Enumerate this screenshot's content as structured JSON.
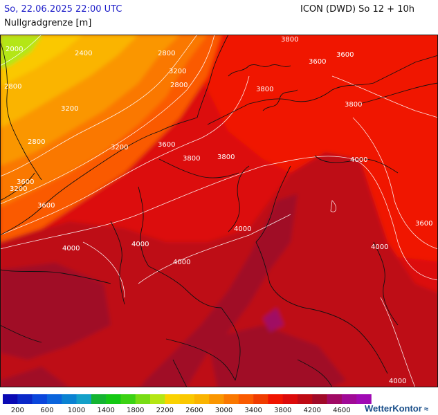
{
  "header": {
    "datetime": "So, 22.06.2025 22:00 UTC",
    "model_run": "ICON (DWD) So 12 + 10h",
    "parameter": "Nullgradgrenze [m]"
  },
  "legend": {
    "colors": [
      "#0a0ab4",
      "#0a28c8",
      "#0a46dc",
      "#0a64dc",
      "#0a82d2",
      "#14a0c8",
      "#14b432",
      "#14c814",
      "#3cd214",
      "#78dc14",
      "#b4e614",
      "#fad200",
      "#fac800",
      "#fab400",
      "#fa9600",
      "#fa7800",
      "#fa5a00",
      "#f03c00",
      "#f01400",
      "#dc0a0a",
      "#be0a14",
      "#a00a28",
      "#a00a64",
      "#a00a96",
      "#a00ab4"
    ],
    "labels": [
      "200",
      "600",
      "1000",
      "1400",
      "1800",
      "2200",
      "2600",
      "3000",
      "3400",
      "3800",
      "4200",
      "4600"
    ]
  },
  "contour_labels": [
    {
      "text": "2000"
    },
    {
      "text": "2400"
    },
    {
      "text": "2800"
    },
    {
      "text": "3200"
    },
    {
      "text": "2800"
    },
    {
      "text": "2800"
    },
    {
      "text": "2800"
    },
    {
      "text": "3200"
    },
    {
      "text": "3600"
    },
    {
      "text": "3800"
    },
    {
      "text": "3600"
    },
    {
      "text": "3200"
    },
    {
      "text": "3600"
    },
    {
      "text": "3600"
    },
    {
      "text": "3800"
    },
    {
      "text": "3800"
    },
    {
      "text": "3800"
    },
    {
      "text": "4000"
    },
    {
      "text": "4000"
    },
    {
      "text": "4000"
    },
    {
      "text": "4000"
    },
    {
      "text": "4000"
    },
    {
      "text": "3600"
    },
    {
      "text": "4000"
    },
    {
      "text": "4000"
    },
    {
      "text": "3200"
    },
    {
      "text": "3600"
    },
    {
      "text": "3800"
    }
  ],
  "branding": {
    "logo_text": "WetterKontor",
    "logo_icon": "wind-gust-icon"
  }
}
